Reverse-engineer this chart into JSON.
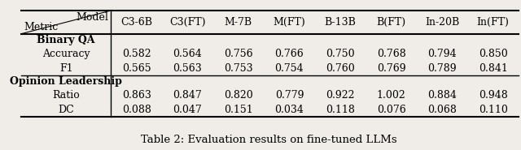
{
  "title": "Table 2: Evaluation results on fine-tuned LLMs",
  "columns": [
    "C3-6B",
    "C3(FT)",
    "M-7B",
    "M(FT)",
    "B-13B",
    "B(FT)",
    "In-20B",
    "In(FT)"
  ],
  "header_diagonal_top": "Model",
  "header_diagonal_bottom": "Metric",
  "sections": [
    {
      "section_label": "Binary QA",
      "rows": [
        {
          "label": "Accuracy",
          "values": [
            0.582,
            0.564,
            0.756,
            0.766,
            0.75,
            0.768,
            0.794,
            0.85
          ]
        },
        {
          "label": "F1",
          "values": [
            0.565,
            0.563,
            0.753,
            0.754,
            0.76,
            0.769,
            0.789,
            0.841
          ]
        }
      ]
    },
    {
      "section_label": "Opinion Leadership",
      "rows": [
        {
          "label": "Ratio",
          "values": [
            0.863,
            0.847,
            0.82,
            0.779,
            0.922,
            1.002,
            0.884,
            0.948
          ]
        },
        {
          "label": "DC",
          "values": [
            0.088,
            0.047,
            0.151,
            0.034,
            0.118,
            0.076,
            0.068,
            0.11
          ]
        }
      ]
    }
  ],
  "bg_color": "#f0ede8",
  "font_size": 9.0,
  "title_font_size": 9.5
}
